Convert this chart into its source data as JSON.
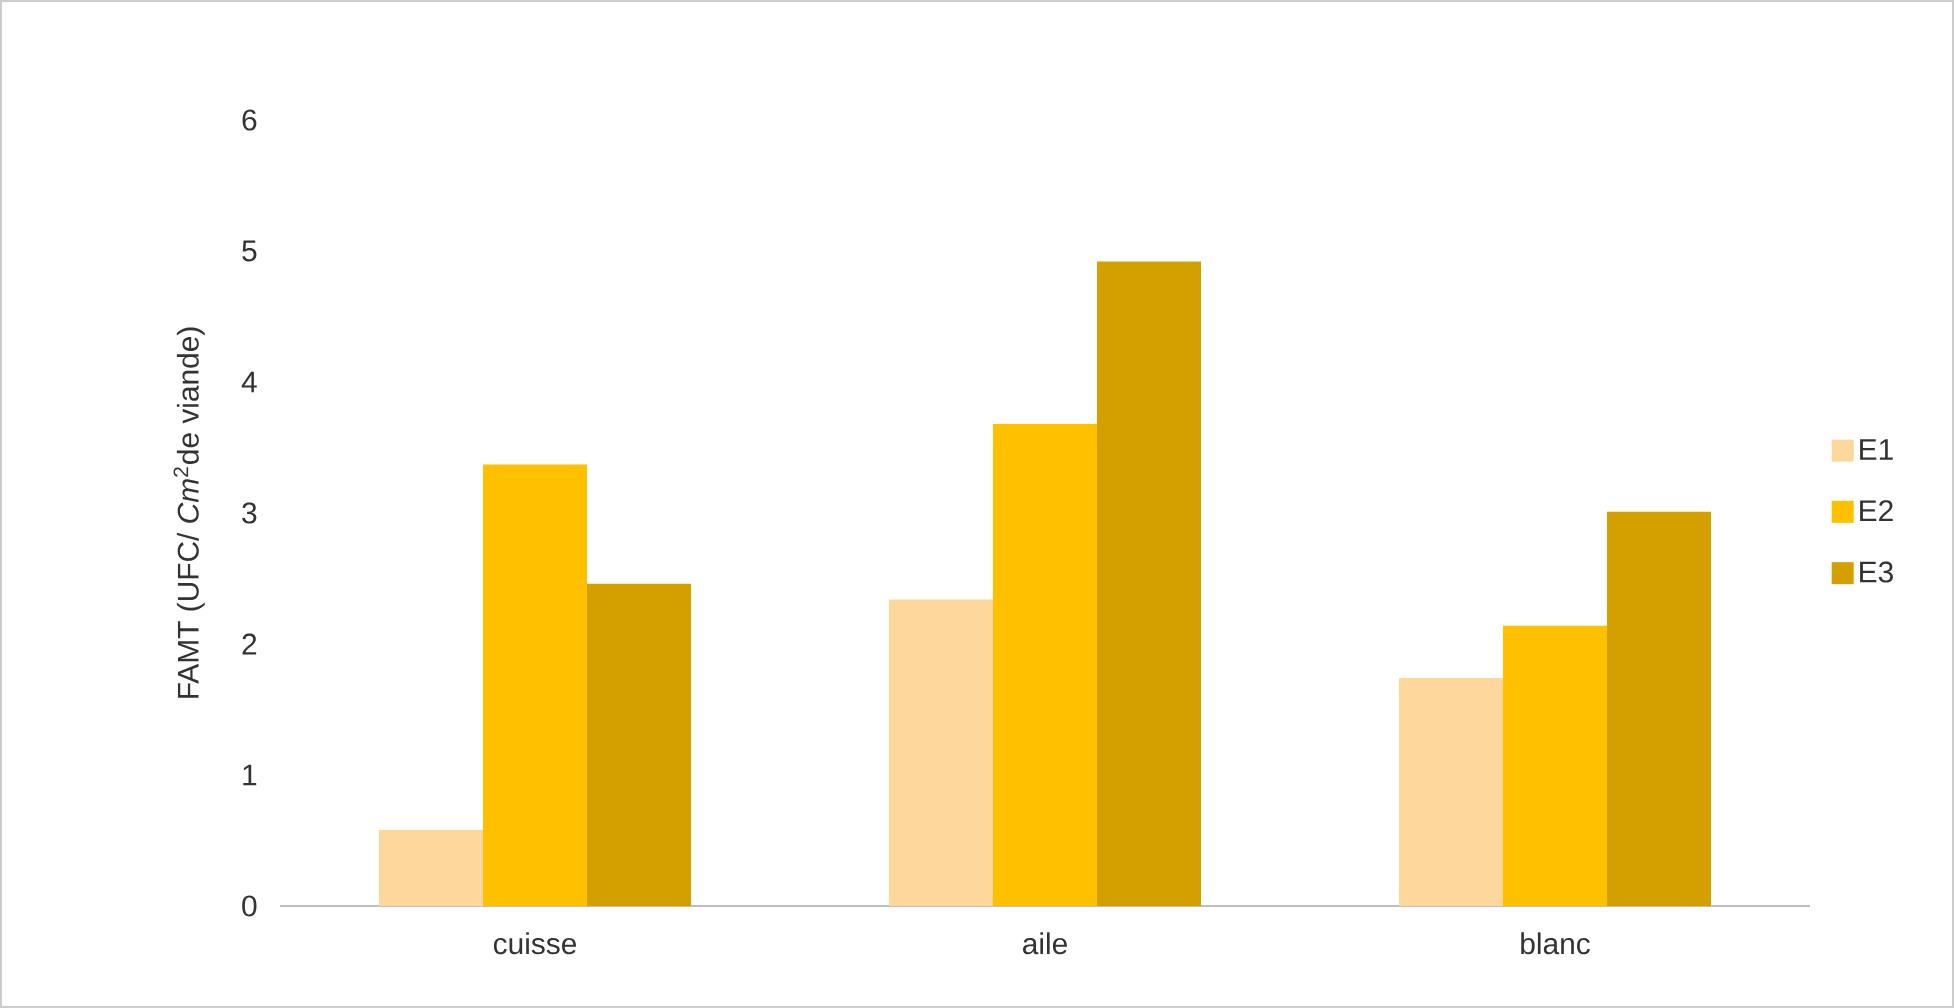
{
  "chart_data": {
    "type": "bar",
    "ylabel": "FAMT (UFC/ *Cm*$^{2}$de viande)",
    "categories": [
      "cuisse",
      "aile",
      "blanc"
    ],
    "series": [
      {
        "name": "E1",
        "color": "#fdd79b",
        "values": [
          0.58,
          2.34,
          1.74
        ]
      },
      {
        "name": "E2",
        "color": "#ffc000",
        "values": [
          3.37,
          3.68,
          2.14
        ]
      },
      {
        "name": "E3",
        "color": "#d4a000",
        "values": [
          2.46,
          4.92,
          3.01
        ]
      }
    ],
    "ylim": [
      0,
      6
    ],
    "yticks": [
      0,
      1,
      2,
      3,
      4,
      5,
      6
    ],
    "grid": false,
    "legend": "right"
  }
}
